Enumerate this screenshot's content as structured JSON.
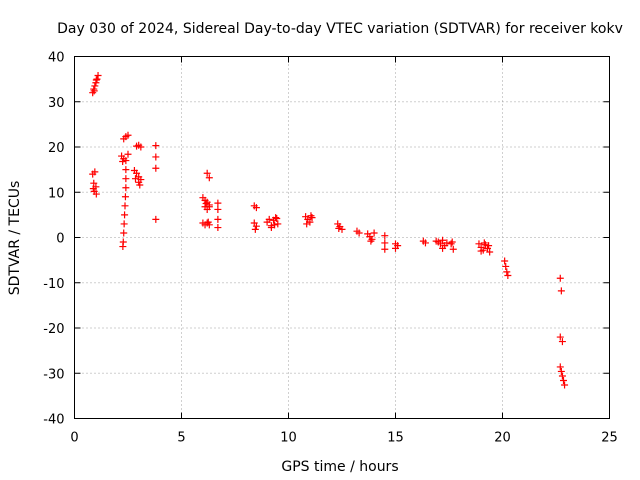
{
  "chart_data": {
    "type": "scatter",
    "title": "Day 030 of 2024, Sidereal Day-to-day VTEC variation (SDTVAR) for receiver kokv",
    "xlabel": "GPS time / hours",
    "ylabel": "SDTVAR / TECUs",
    "xlim": [
      0,
      25
    ],
    "ylim": [
      -40,
      40
    ],
    "xticks": [
      0,
      5,
      10,
      15,
      20,
      25
    ],
    "yticks": [
      -40,
      -30,
      -20,
      -10,
      0,
      10,
      20,
      30,
      40
    ],
    "grid": true,
    "marker": "plus",
    "series": [
      {
        "name": "SDTVAR",
        "color": "#ff0000",
        "points": [
          [
            0.85,
            32.0
          ],
          [
            0.9,
            32.8
          ],
          [
            0.95,
            33.5
          ],
          [
            1.0,
            34.2
          ],
          [
            1.05,
            35.0
          ],
          [
            1.1,
            35.8
          ],
          [
            0.92,
            32.4
          ],
          [
            1.02,
            34.8
          ],
          [
            0.85,
            14.0
          ],
          [
            0.95,
            14.5
          ],
          [
            0.9,
            12.0
          ],
          [
            1.0,
            11.2
          ],
          [
            0.92,
            10.2
          ],
          [
            1.02,
            9.6
          ],
          [
            0.88,
            10.8
          ],
          [
            2.3,
            21.8
          ],
          [
            2.4,
            22.3
          ],
          [
            2.5,
            22.6
          ],
          [
            2.2,
            18.0
          ],
          [
            2.3,
            17.4
          ],
          [
            2.4,
            17.0
          ],
          [
            2.5,
            18.4
          ],
          [
            2.25,
            16.8
          ],
          [
            2.4,
            15.0
          ],
          [
            2.4,
            13.0
          ],
          [
            2.4,
            11.0
          ],
          [
            2.38,
            9.0
          ],
          [
            2.36,
            7.0
          ],
          [
            2.34,
            5.0
          ],
          [
            2.32,
            3.0
          ],
          [
            2.3,
            1.0
          ],
          [
            2.28,
            -1.0
          ],
          [
            2.26,
            -2.0
          ],
          [
            2.9,
            20.2
          ],
          [
            3.0,
            20.4
          ],
          [
            3.1,
            20.0
          ],
          [
            2.8,
            14.8
          ],
          [
            2.9,
            14.2
          ],
          [
            3.0,
            13.4
          ],
          [
            3.1,
            12.8
          ],
          [
            2.85,
            13.0
          ],
          [
            3.0,
            12.2
          ],
          [
            3.05,
            11.6
          ],
          [
            3.8,
            20.3
          ],
          [
            3.8,
            17.8
          ],
          [
            3.8,
            15.3
          ],
          [
            3.8,
            4.0
          ],
          [
            6.0,
            8.8
          ],
          [
            6.1,
            8.2
          ],
          [
            6.2,
            7.8
          ],
          [
            6.3,
            7.2
          ],
          [
            6.1,
            6.8
          ],
          [
            6.2,
            6.2
          ],
          [
            6.3,
            6.8
          ],
          [
            6.15,
            7.5
          ],
          [
            6.0,
            3.2
          ],
          [
            6.1,
            2.8
          ],
          [
            6.2,
            3.2
          ],
          [
            6.3,
            2.8
          ],
          [
            6.25,
            3.4
          ],
          [
            6.2,
            14.2
          ],
          [
            6.3,
            13.2
          ],
          [
            6.7,
            7.6
          ],
          [
            6.7,
            6.2
          ],
          [
            6.7,
            4.0
          ],
          [
            6.7,
            2.2
          ],
          [
            8.4,
            7.0
          ],
          [
            8.5,
            6.6
          ],
          [
            8.4,
            3.2
          ],
          [
            8.5,
            2.5
          ],
          [
            8.45,
            1.8
          ],
          [
            9.0,
            3.4
          ],
          [
            9.1,
            4.0
          ],
          [
            9.2,
            2.6
          ],
          [
            9.3,
            3.8
          ],
          [
            9.4,
            4.4
          ],
          [
            9.5,
            3.0
          ],
          [
            9.2,
            2.2
          ],
          [
            9.35,
            2.8
          ],
          [
            9.45,
            4.2
          ],
          [
            10.8,
            4.6
          ],
          [
            10.9,
            4.0
          ],
          [
            11.0,
            3.4
          ],
          [
            11.1,
            4.4
          ],
          [
            10.85,
            3.0
          ],
          [
            11.05,
            4.8
          ],
          [
            12.3,
            3.0
          ],
          [
            12.4,
            2.4
          ],
          [
            12.5,
            1.8
          ],
          [
            12.35,
            2.0
          ],
          [
            13.2,
            1.4
          ],
          [
            13.3,
            1.0
          ],
          [
            13.7,
            0.8
          ],
          [
            13.8,
            0.2
          ],
          [
            13.9,
            -0.4
          ],
          [
            14.0,
            1.0
          ],
          [
            13.85,
            -0.8
          ],
          [
            14.5,
            0.4
          ],
          [
            14.5,
            -1.2
          ],
          [
            14.5,
            -2.6
          ],
          [
            15.0,
            -1.4
          ],
          [
            15.0,
            -2.4
          ],
          [
            15.1,
            -1.8
          ],
          [
            16.3,
            -0.8
          ],
          [
            16.4,
            -1.2
          ],
          [
            16.9,
            -0.8
          ],
          [
            17.0,
            -1.0
          ],
          [
            17.1,
            -1.4
          ],
          [
            17.2,
            -0.6
          ],
          [
            17.3,
            -1.8
          ],
          [
            17.4,
            -1.2
          ],
          [
            17.2,
            -2.4
          ],
          [
            17.6,
            -1.4
          ],
          [
            17.7,
            -2.6
          ],
          [
            17.65,
            -1.0
          ],
          [
            18.9,
            -1.4
          ],
          [
            19.0,
            -2.2
          ],
          [
            19.1,
            -2.8
          ],
          [
            19.2,
            -1.6
          ],
          [
            19.3,
            -2.4
          ],
          [
            19.4,
            -3.2
          ],
          [
            19.0,
            -3.0
          ],
          [
            19.15,
            -1.2
          ],
          [
            19.35,
            -1.8
          ],
          [
            20.1,
            -5.2
          ],
          [
            20.15,
            -6.4
          ],
          [
            20.2,
            -7.6
          ],
          [
            20.25,
            -8.4
          ],
          [
            22.7,
            -9.0
          ],
          [
            22.75,
            -11.8
          ],
          [
            22.7,
            -22.0
          ],
          [
            22.8,
            -23.0
          ],
          [
            22.7,
            -28.6
          ],
          [
            22.75,
            -29.6
          ],
          [
            22.8,
            -30.6
          ],
          [
            22.85,
            -31.6
          ],
          [
            22.9,
            -32.6
          ]
        ]
      }
    ]
  }
}
